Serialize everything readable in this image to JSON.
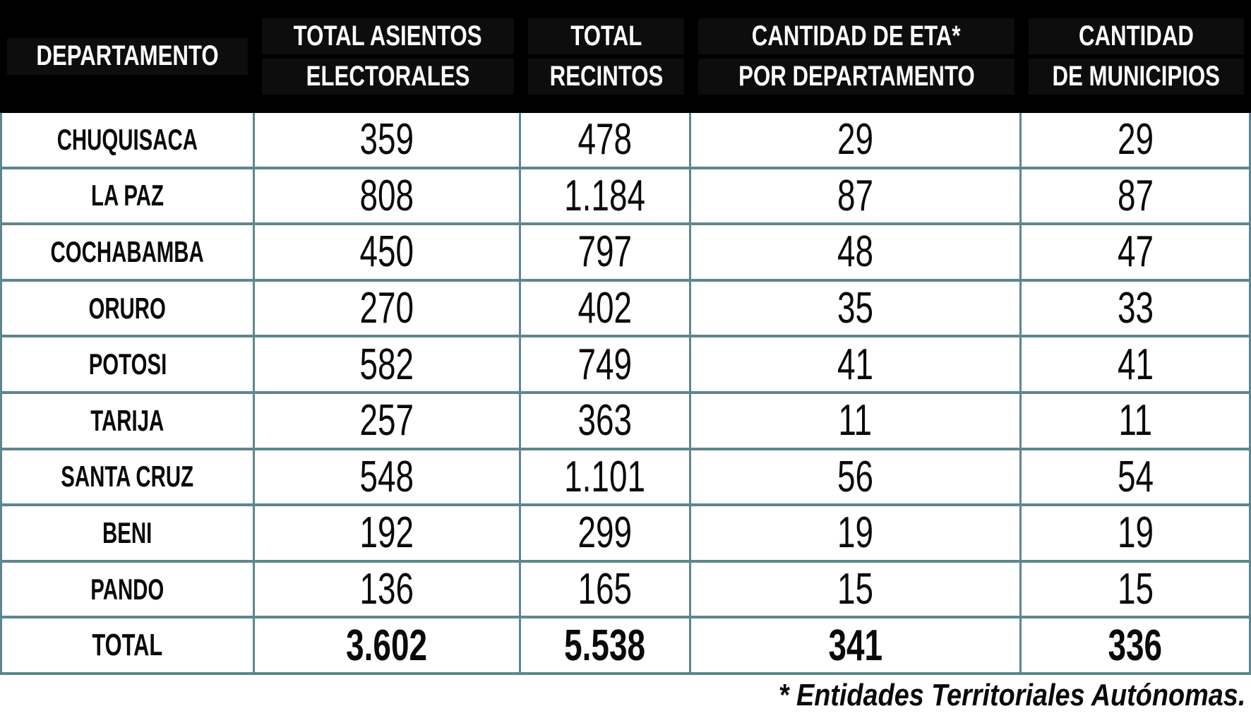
{
  "colors": {
    "header_bg": "#000000",
    "header_text": "#ffffff",
    "border": "#5f878b",
    "body_bg": "#ffffff",
    "text": "#0a0a0a"
  },
  "table": {
    "columns": [
      {
        "key": "department",
        "lines": [
          "DEPARTAMENTO"
        ]
      },
      {
        "key": "asientos",
        "lines": [
          "TOTAL ASIENTOS",
          "ELECTORALES"
        ]
      },
      {
        "key": "recintos",
        "lines": [
          "TOTAL",
          "RECINTOS"
        ]
      },
      {
        "key": "eta",
        "lines": [
          "CANTIDAD DE ETA*",
          "POR DEPARTAMENTO"
        ]
      },
      {
        "key": "municipios",
        "lines": [
          "CANTIDAD",
          "DE MUNICIPIOS"
        ]
      }
    ],
    "rows": [
      {
        "department": "CHUQUISACA",
        "asientos": "359",
        "recintos": "478",
        "eta": "29",
        "municipios": "29"
      },
      {
        "department": "LA PAZ",
        "asientos": "808",
        "recintos": "1.184",
        "eta": "87",
        "municipios": "87"
      },
      {
        "department": "COCHABAMBA",
        "asientos": "450",
        "recintos": "797",
        "eta": "48",
        "municipios": "47"
      },
      {
        "department": "ORURO",
        "asientos": "270",
        "recintos": "402",
        "eta": "35",
        "municipios": "33"
      },
      {
        "department": "POTOSI",
        "asientos": "582",
        "recintos": "749",
        "eta": "41",
        "municipios": "41"
      },
      {
        "department": "TARIJA",
        "asientos": "257",
        "recintos": "363",
        "eta": "11",
        "municipios": "11"
      },
      {
        "department": "SANTA CRUZ",
        "asientos": "548",
        "recintos": "1.101",
        "eta": "56",
        "municipios": "54"
      },
      {
        "department": "BENI",
        "asientos": "192",
        "recintos": "299",
        "eta": "19",
        "municipios": "19"
      },
      {
        "department": "PANDO",
        "asientos": "136",
        "recintos": "165",
        "eta": "15",
        "municipios": "15"
      }
    ],
    "total_row": {
      "department": "TOTAL",
      "asientos": "3.602",
      "recintos": "5.538",
      "eta": "341",
      "municipios": "336"
    },
    "footnote": "* Entidades Territoriales Autónomas."
  },
  "chart_data": {
    "type": "table",
    "title": "",
    "columns": [
      "DEPARTAMENTO",
      "TOTAL ASIENTOS ELECTORALES",
      "TOTAL RECINTOS",
      "CANTIDAD DE ETA* POR DEPARTAMENTO",
      "CANTIDAD DE MUNICIPIOS"
    ],
    "rows": [
      [
        "CHUQUISACA",
        359,
        478,
        29,
        29
      ],
      [
        "LA PAZ",
        808,
        1184,
        87,
        87
      ],
      [
        "COCHABAMBA",
        450,
        797,
        48,
        47
      ],
      [
        "ORURO",
        270,
        402,
        35,
        33
      ],
      [
        "POTOSI",
        582,
        749,
        41,
        41
      ],
      [
        "TARIJA",
        257,
        363,
        11,
        11
      ],
      [
        "SANTA CRUZ",
        548,
        1101,
        56,
        54
      ],
      [
        "BENI",
        192,
        299,
        19,
        19
      ],
      [
        "PANDO",
        136,
        165,
        15,
        15
      ],
      [
        "TOTAL",
        3602,
        5538,
        341,
        336
      ]
    ],
    "footnote": "* Entidades Territoriales Autónomas."
  }
}
